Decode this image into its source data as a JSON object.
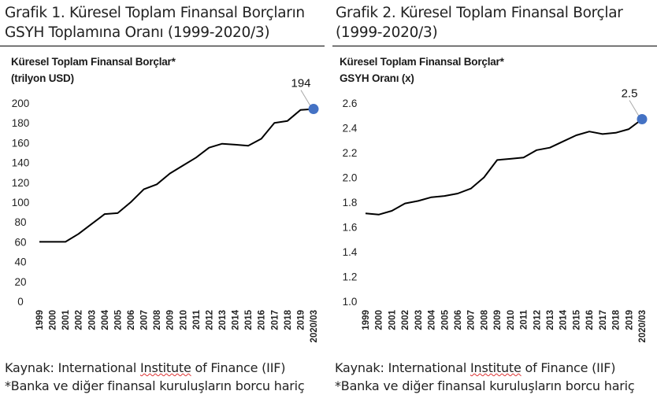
{
  "chart_data": [
    {
      "type": "line",
      "figure_title_line1": "Grafik 1. Küresel Toplam Finansal Borçların",
      "figure_title_line2": "GSYH Toplamına Oranı (1999-2020/3)",
      "title_line1": "Küresel Toplam Finansal Borçlar*",
      "title_line2": "(trilyon USD)",
      "categories": [
        "1999",
        "2000",
        "2001",
        "2002",
        "2003",
        "2004",
        "2005",
        "2006",
        "2007",
        "2008",
        "2009",
        "2010",
        "2011",
        "2012",
        "2013",
        "2014",
        "2015",
        "2016",
        "2017",
        "2018",
        "2019",
        "2020/03"
      ],
      "values": [
        60,
        60,
        60,
        68,
        78,
        88,
        89,
        100,
        113,
        118,
        129,
        137,
        145,
        155,
        159,
        158,
        157,
        164,
        180,
        182,
        193,
        194
      ],
      "ylim": [
        0,
        200
      ],
      "yticks": [
        0,
        20,
        40,
        60,
        80,
        100,
        120,
        140,
        160,
        180,
        200
      ],
      "end_label": "194",
      "grid": false
    },
    {
      "type": "line",
      "figure_title_line1": "Grafik 2. Küresel Toplam Finansal Borçlar",
      "figure_title_line2": "(1999-2020/3)",
      "title_line1": "Küresel Toplam Finansal Borçlar*",
      "title_line2": "GSYH Oranı (x)",
      "categories": [
        "1999",
        "2000",
        "2001",
        "2002",
        "2003",
        "2004",
        "2005",
        "2006",
        "2007",
        "2008",
        "2009",
        "2010",
        "2011",
        "2012",
        "2013",
        "2014",
        "2015",
        "2016",
        "2017",
        "2018",
        "2019",
        "2020/03"
      ],
      "values": [
        1.71,
        1.7,
        1.73,
        1.79,
        1.81,
        1.84,
        1.85,
        1.87,
        1.91,
        2.0,
        2.14,
        2.15,
        2.16,
        2.22,
        2.24,
        2.29,
        2.34,
        2.37,
        2.35,
        2.36,
        2.39,
        2.47
      ],
      "ylim": [
        1.0,
        2.6
      ],
      "yticks": [
        "1.0",
        "1.2",
        "1.4",
        "1.6",
        "1.8",
        "2.0",
        "2.2",
        "2.4",
        "2.6"
      ],
      "end_label": "2.5",
      "grid": false
    }
  ],
  "footnotes": {
    "source_prefix": "Kaynak: International ",
    "source_word": "Institute",
    "source_suffix": " of Finance (IIF)",
    "note": "*Banka ve diğer finansal kuruluşların borcu hariç"
  },
  "colors": {
    "line": "#000000",
    "marker": "#4472c4",
    "callout": "#aaaaaa"
  }
}
